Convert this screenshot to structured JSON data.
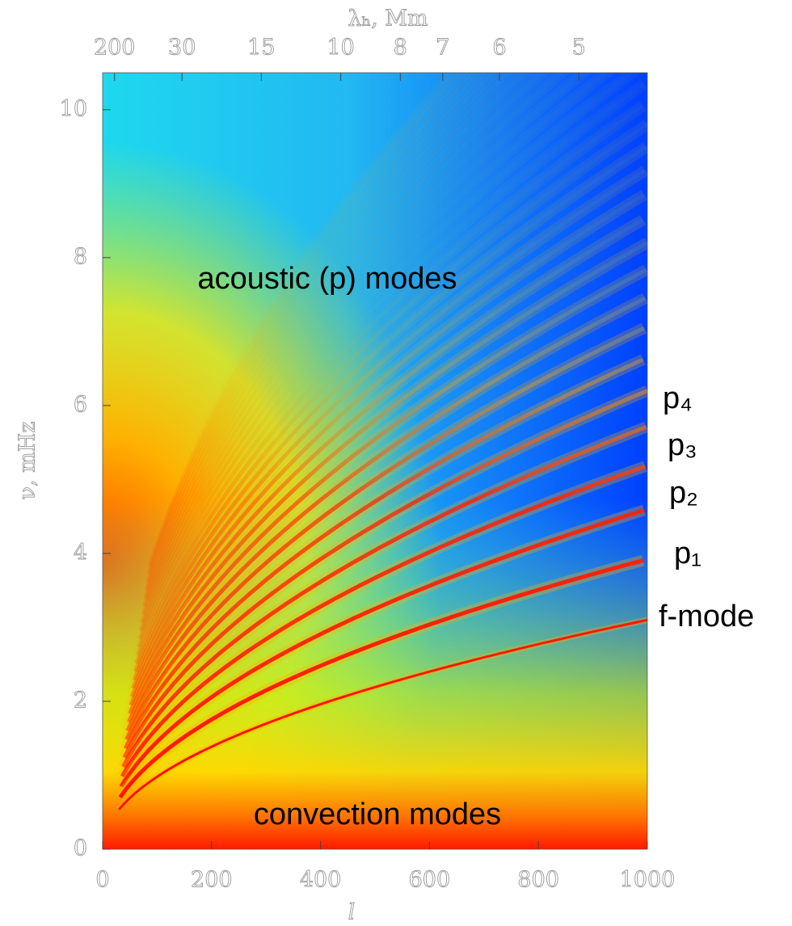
{
  "chart_data": {
    "type": "heatmap",
    "x_label": "l",
    "y_label": "ν, mHz",
    "x2_label": "λₕ, Mm",
    "xlim": [
      0,
      1000
    ],
    "xticks": [
      0,
      200,
      400,
      600,
      800,
      1000
    ],
    "ylim": [
      0,
      10.5
    ],
    "yticks": [
      0,
      2,
      4,
      6,
      8,
      10
    ],
    "x2ticks": [
      200,
      30,
      15,
      10,
      8,
      7,
      6,
      5
    ],
    "annotations": [
      "acoustic (p) modes",
      "convection modes",
      "p₄",
      "p₃",
      "p₂",
      "p₁",
      "f-mode"
    ]
  }
}
